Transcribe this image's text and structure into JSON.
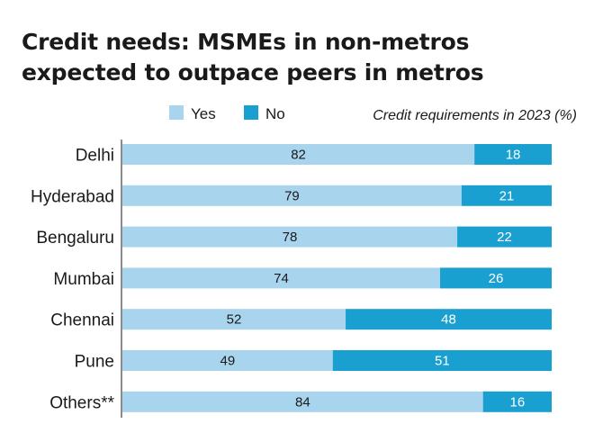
{
  "title_lines": [
    "Credit needs: MSMEs in non-metros",
    "expected to outpace peers in metros"
  ],
  "colors": {
    "yes": "#a9d4ee",
    "no": "#1a9fd1",
    "yes_text": "#1a1a1a",
    "no_text": "#ffffff"
  },
  "chart_data": {
    "type": "bar",
    "orientation": "horizontal",
    "stacked": true,
    "title": "Credit needs: MSMEs in non-metros expected to outpace peers in metros",
    "subtitle": "Credit requirements in 2023 (%)",
    "categories": [
      "Delhi",
      "Hyderabad",
      "Bengaluru",
      "Mumbai",
      "Chennai",
      "Pune",
      "Others**"
    ],
    "series": [
      {
        "name": "Yes",
        "values": [
          82,
          79,
          78,
          74,
          52,
          49,
          84
        ]
      },
      {
        "name": "No",
        "values": [
          18,
          21,
          22,
          26,
          48,
          51,
          16
        ]
      }
    ],
    "xlim": [
      0,
      100
    ],
    "grid": false,
    "legend": "top"
  }
}
